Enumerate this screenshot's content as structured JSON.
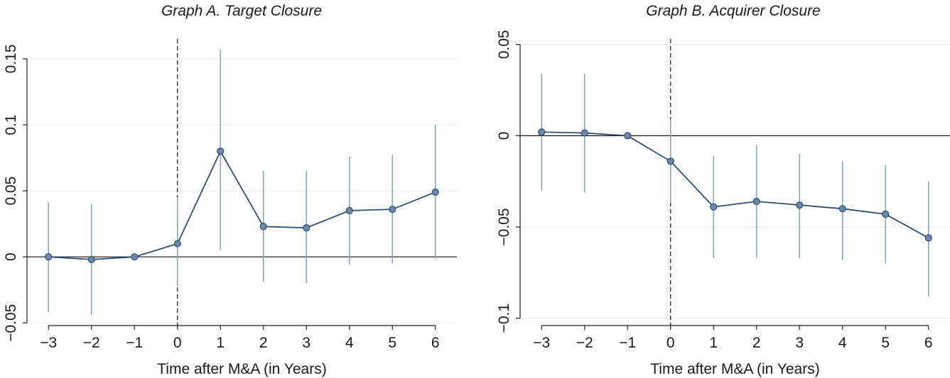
{
  "chart_data": [
    {
      "type": "line",
      "title": "Graph A. Target Closure",
      "xlabel": "Time after M&A (in Years)",
      "ylabel": "",
      "x": [
        -3,
        -2,
        -1,
        0,
        1,
        2,
        3,
        4,
        5,
        6
      ],
      "xticks": [
        "−3",
        "−2",
        "−1",
        "0",
        "1",
        "2",
        "3",
        "4",
        "5",
        "6"
      ],
      "xlim": [
        -3.5,
        6.5
      ],
      "ylim": [
        -0.052,
        0.165
      ],
      "yticks": [
        -0.05,
        0,
        0.05,
        0.1,
        0.15
      ],
      "ytick_labels": [
        "−0.05",
        "0",
        "0.05",
        "0.1",
        "0.15"
      ],
      "series": [
        {
          "values": [
            0.0,
            -0.002,
            0.0,
            0.01,
            0.08,
            0.023,
            0.022,
            0.035,
            0.036,
            0.049
          ],
          "ci_lower": [
            -0.042,
            -0.044,
            0.0,
            -0.022,
            0.005,
            -0.019,
            -0.02,
            -0.006,
            -0.005,
            -0.001
          ],
          "ci_upper": [
            0.041,
            0.04,
            0.0,
            0.045,
            0.157,
            0.065,
            0.065,
            0.076,
            0.077,
            0.1
          ]
        }
      ],
      "reference_lines": {
        "horizontal_at": 0,
        "vertical_dashed_at": 0
      },
      "grid": true,
      "colors": {
        "line": "#2e4f6e",
        "marker": "#6b88a8",
        "ci": "#8fa3b6",
        "grid": "#e6ecef"
      }
    },
    {
      "type": "line",
      "title": "Graph B. Acquirer Closure",
      "xlabel": "Time after M&A (in Years)",
      "ylabel": "",
      "x": [
        -3,
        -2,
        -1,
        0,
        1,
        2,
        3,
        4,
        5,
        6
      ],
      "xticks": [
        "−3",
        "−2",
        "−1",
        "0",
        "1",
        "2",
        "3",
        "4",
        "5",
        "6"
      ],
      "xlim": [
        -3.5,
        6.5
      ],
      "ylim": [
        -0.104,
        0.053
      ],
      "yticks": [
        -0.1,
        -0.05,
        0,
        0.05
      ],
      "ytick_labels": [
        "−0.1",
        "−0.05",
        "0",
        "0.05"
      ],
      "series": [
        {
          "values": [
            0.002,
            0.0015,
            0.0,
            -0.014,
            -0.039,
            -0.036,
            -0.038,
            -0.04,
            -0.043,
            -0.056
          ],
          "ci_lower": [
            -0.03,
            -0.031,
            0.0,
            -0.037,
            -0.067,
            -0.067,
            -0.067,
            -0.068,
            -0.07,
            -0.088
          ],
          "ci_upper": [
            0.034,
            0.034,
            0.0,
            0.009,
            -0.011,
            -0.005,
            -0.01,
            -0.014,
            -0.016,
            -0.025
          ]
        }
      ],
      "reference_lines": {
        "horizontal_at": 0,
        "vertical_dashed_at": 0
      },
      "grid": true,
      "colors": {
        "line": "#2e4f6e",
        "marker": "#6b88a8",
        "ci": "#8fa3b6",
        "grid": "#e6ecef"
      }
    }
  ]
}
